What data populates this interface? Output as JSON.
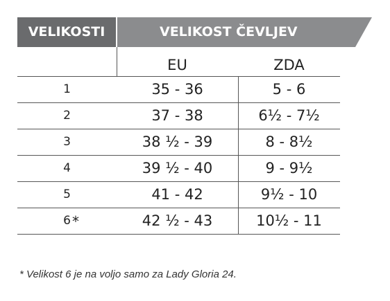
{
  "table": {
    "header": [
      "VELIKOSTI",
      "VELIKOST ČEVLJEV"
    ],
    "subheader": [
      "EU",
      "ZDA"
    ],
    "rows": [
      [
        "1",
        "35 - 36",
        "5 - 6"
      ],
      [
        "2",
        "37 - 38",
        "6½ - 7½"
      ],
      [
        "3",
        "38 ½ - 39",
        "8 - 8½"
      ],
      [
        "4",
        "39 ½ - 40",
        "9 - 9½"
      ],
      [
        "5",
        "41 - 42",
        "9½ - 10"
      ],
      [
        "6",
        "42 ½ - 43",
        "10½ - 11"
      ]
    ],
    "note_mark": "*"
  },
  "footnote": "* Velikost 6 je na voljo samo za Lady Gloria 24."
}
